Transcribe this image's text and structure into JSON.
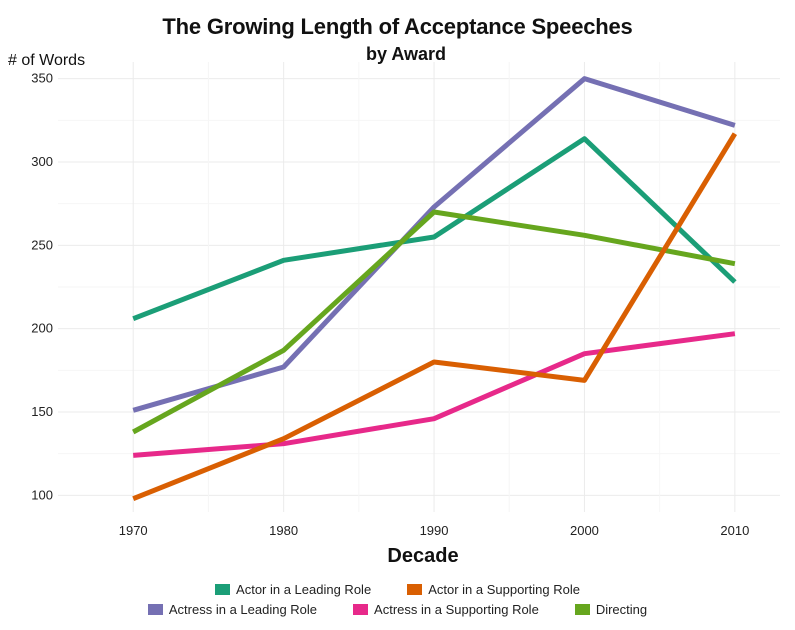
{
  "chart_data": {
    "type": "line",
    "title": "The Growing Length of Acceptance Speeches",
    "subtitle": "by Award",
    "ylabel": "# of Words",
    "xlabel": "Decade",
    "x": [
      1970,
      1980,
      1990,
      2000,
      2010
    ],
    "x_tick_labels": [
      "1970",
      "1980",
      "1990",
      "2000",
      "2010"
    ],
    "ylim": [
      90,
      360
    ],
    "y_ticks": [
      100,
      150,
      200,
      250,
      300,
      350
    ],
    "y_tick_labels": [
      "100",
      "150",
      "200",
      "250",
      "300",
      "350"
    ],
    "grid": true,
    "legend_position": "bottom",
    "series": [
      {
        "name": "Actor in a Leading Role",
        "color": "#1b9e77",
        "values": [
          206,
          241,
          255,
          314,
          228
        ]
      },
      {
        "name": "Actress in a Leading Role",
        "color": "#7570b3",
        "values": [
          151,
          177,
          273,
          350,
          322
        ]
      },
      {
        "name": "Directing",
        "color": "#66a61e",
        "values": [
          138,
          187,
          270,
          256,
          239
        ]
      },
      {
        "name": "Actress in a Supporting Role",
        "color": "#e7298a",
        "values": [
          124,
          131,
          146,
          185,
          197
        ]
      },
      {
        "name": "Actor in a Supporting Role",
        "color": "#d95f02",
        "values": [
          98,
          134,
          180,
          169,
          317
        ]
      }
    ],
    "legend_rows": [
      [
        "Actor in a Leading Role",
        "Actor in a Supporting Role"
      ],
      [
        "Actress in a Leading Role",
        "Actress in a Supporting Role",
        "Directing"
      ]
    ]
  }
}
